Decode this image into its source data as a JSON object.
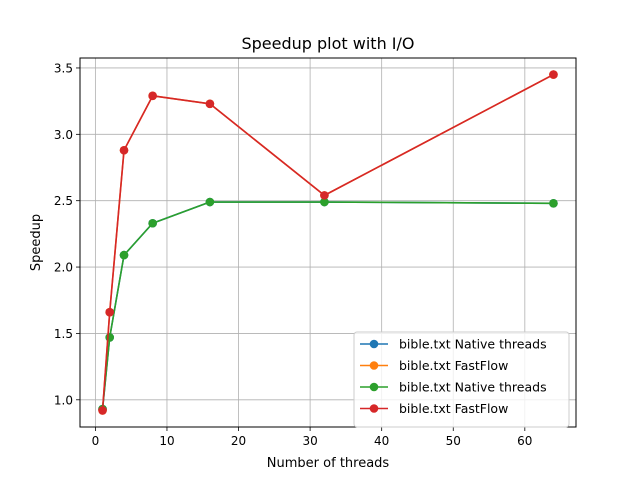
{
  "chart_data": {
    "type": "line",
    "title": "Speedup plot with I/O",
    "xlabel": "Number of threads",
    "ylabel": "Speedup",
    "xlim": [
      -2.15,
      67.15
    ],
    "ylim": [
      0.795,
      3.575
    ],
    "xticks": [
      0,
      10,
      20,
      30,
      40,
      50,
      60
    ],
    "yticks": [
      1.0,
      1.5,
      2.0,
      2.5,
      3.0,
      3.5
    ],
    "grid": true,
    "legend_position": "bottom-right",
    "series": [
      {
        "name": "bible.txt Native threads",
        "color": "#1f77b4",
        "x": [
          1,
          2,
          4,
          8,
          16,
          32,
          64
        ],
        "y": [
          0.93,
          1.47,
          2.09,
          2.33,
          2.49,
          2.49,
          2.48
        ]
      },
      {
        "name": "bible.txt FastFlow",
        "color": "#ff7f0e",
        "x": [
          1,
          2,
          4,
          8,
          16,
          32,
          64
        ],
        "y": [
          0.92,
          1.66,
          2.88,
          3.29,
          3.23,
          2.54,
          3.45
        ]
      },
      {
        "name": "bible.txt Native threads",
        "color": "#2ca02c",
        "x": [
          1,
          2,
          4,
          8,
          16,
          32,
          64
        ],
        "y": [
          0.93,
          1.47,
          2.09,
          2.33,
          2.49,
          2.49,
          2.48
        ]
      },
      {
        "name": "bible.txt FastFlow",
        "color": "#d62728",
        "x": [
          1,
          2,
          4,
          8,
          16,
          32,
          64
        ],
        "y": [
          0.92,
          1.66,
          2.88,
          3.29,
          3.23,
          2.54,
          3.45
        ]
      }
    ]
  }
}
